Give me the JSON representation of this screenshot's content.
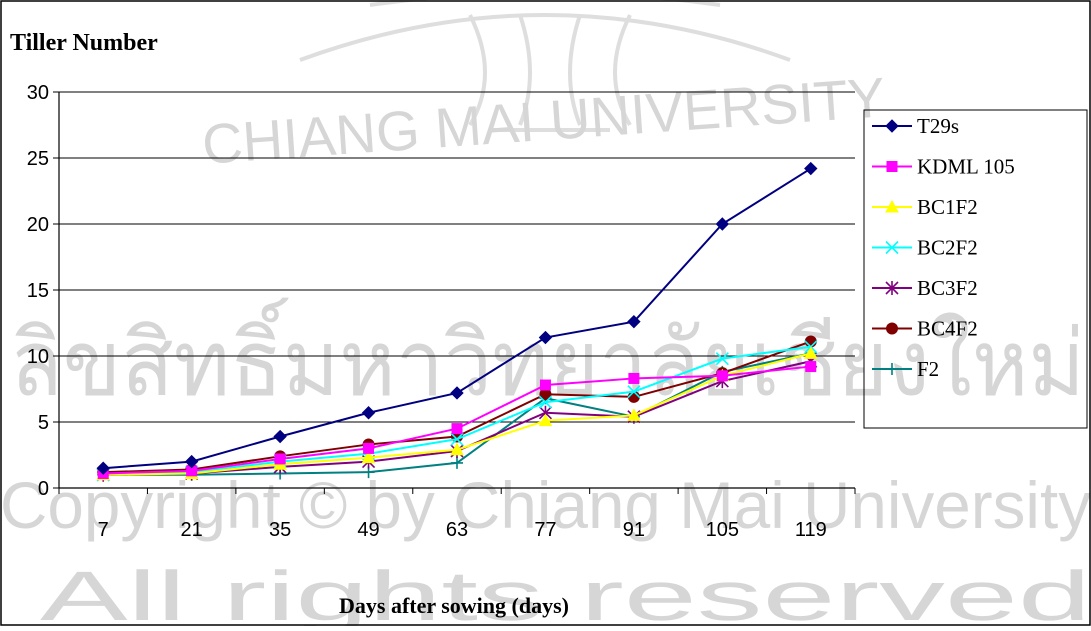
{
  "chart_data": {
    "type": "line",
    "title": "Tiller Number",
    "xlabel": "Days after sowing (days)",
    "ylabel": "",
    "categories": [
      "7",
      "21",
      "35",
      "49",
      "63",
      "77",
      "91",
      "105",
      "119"
    ],
    "ylim": [
      0,
      30
    ],
    "yticks": [
      0,
      5,
      10,
      15,
      20,
      25,
      30
    ],
    "grid": true,
    "legend_position": "right",
    "series": [
      {
        "name": "T29s",
        "color": "#000080",
        "marker": "diamond",
        "values": [
          1.5,
          2.0,
          3.9,
          5.7,
          7.2,
          11.4,
          12.6,
          20.0,
          24.2
        ]
      },
      {
        "name": "KDML 105",
        "color": "#FF00FF",
        "marker": "square",
        "values": [
          1.1,
          1.3,
          2.2,
          3.0,
          4.5,
          7.8,
          8.3,
          8.5,
          9.2
        ]
      },
      {
        "name": "BC1F2",
        "color": "#FFFF00",
        "marker": "triangle",
        "values": [
          1.0,
          1.1,
          1.8,
          2.3,
          2.9,
          5.1,
          5.5,
          8.5,
          10.2
        ]
      },
      {
        "name": "BC2F2",
        "color": "#00FFFF",
        "marker": "x",
        "values": [
          1.0,
          1.2,
          2.0,
          2.6,
          3.7,
          6.5,
          7.3,
          9.8,
          10.7
        ]
      },
      {
        "name": "BC3F2",
        "color": "#800080",
        "marker": "star",
        "values": [
          1.0,
          1.1,
          1.6,
          2.0,
          2.8,
          5.7,
          5.4,
          8.1,
          9.6
        ]
      },
      {
        "name": "BC4F2",
        "color": "#800000",
        "marker": "circle",
        "values": [
          1.2,
          1.4,
          2.4,
          3.3,
          3.9,
          7.1,
          6.9,
          8.7,
          11.1
        ]
      },
      {
        "name": "F2",
        "color": "#008080",
        "marker": "plus",
        "values": [
          1.0,
          1.0,
          1.1,
          1.2,
          1.9,
          6.8,
          5.4,
          8.8,
          10.2
        ]
      }
    ]
  },
  "watermark": {
    "top_arc": "CHIANG MAI UNIVERSITY",
    "line1": "ลิขสิทธิ์มหาวิทยาลัยเชียงใหม่",
    "line2": "Copyright © by Chiang Mai University",
    "line3": "All rights reserved"
  }
}
